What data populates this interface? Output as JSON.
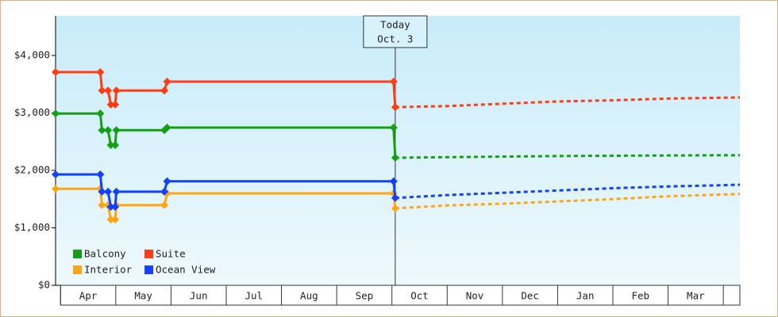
{
  "chart_data": {
    "type": "line",
    "x": [
      -0.09,
      0.72,
      0.75,
      0.86,
      0.91,
      0.99,
      1.01,
      1.88,
      1.93,
      6.03,
      6.06,
      7.0,
      8.0,
      9.0,
      10.0,
      11.0,
      12.3
    ],
    "series": [
      {
        "name": "Balcony",
        "color": "#14a014",
        "values": [
          2990,
          2990,
          2700,
          2700,
          2440,
          2440,
          2700,
          2700,
          2745,
          2745,
          2220,
          2230,
          2240,
          2250,
          2255,
          2260,
          2265
        ]
      },
      {
        "name": "Suite",
        "color": "#ff3c14",
        "values": [
          3710,
          3710,
          3390,
          3390,
          3145,
          3145,
          3390,
          3390,
          3545,
          3545,
          3100,
          3120,
          3160,
          3200,
          3220,
          3250,
          3270
        ]
      },
      {
        "name": "Interior",
        "color": "#ffa514",
        "values": [
          1680,
          1680,
          1395,
          1395,
          1145,
          1145,
          1395,
          1395,
          1600,
          1600,
          1340,
          1390,
          1420,
          1460,
          1500,
          1550,
          1590
        ]
      },
      {
        "name": "Ocean View",
        "color": "#1440ff",
        "values": [
          1930,
          1930,
          1630,
          1630,
          1365,
          1365,
          1630,
          1630,
          1810,
          1810,
          1520,
          1570,
          1610,
          1650,
          1690,
          1720,
          1750
        ]
      }
    ],
    "today": {
      "x": 6.06,
      "label": "Today",
      "date": "Oct. 3"
    },
    "xlim": [
      -0.09,
      12.3
    ],
    "xticks": [
      {
        "value": 0.5,
        "label": "Apr"
      },
      {
        "value": 1.5,
        "label": "May"
      },
      {
        "value": 2.5,
        "label": "Jun"
      },
      {
        "value": 3.5,
        "label": "Jul"
      },
      {
        "value": 4.5,
        "label": "Aug"
      },
      {
        "value": 5.5,
        "label": "Sep"
      },
      {
        "value": 6.5,
        "label": "Oct"
      },
      {
        "value": 7.5,
        "label": "Nov"
      },
      {
        "value": 8.5,
        "label": "Dec"
      },
      {
        "value": 9.5,
        "label": "Jan"
      },
      {
        "value": 10.5,
        "label": "Feb"
      },
      {
        "value": 11.5,
        "label": "Mar"
      }
    ],
    "ylim": [
      0,
      4690
    ],
    "yticks": [
      {
        "value": 0,
        "label": "$0"
      },
      {
        "value": 1000,
        "label": "$1,000"
      },
      {
        "value": 2000,
        "label": "$2,000"
      },
      {
        "value": 3000,
        "label": "$3,000"
      },
      {
        "value": 4000,
        "label": "$4,000"
      }
    ],
    "legend": "lower left"
  }
}
